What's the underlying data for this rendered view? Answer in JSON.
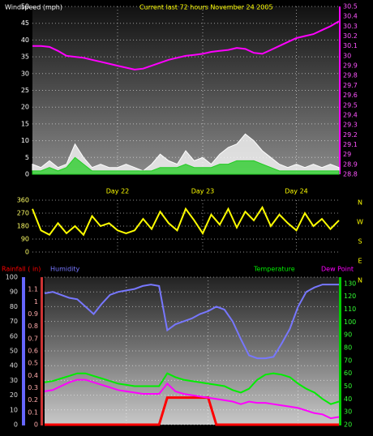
{
  "chart_data": [
    {
      "type": "line",
      "title": "Windspeed (mph)",
      "subtitle": "Current last 72 hours November 24 2005",
      "categories": [
        null,
        null,
        null,
        null,
        null,
        null,
        null,
        null,
        null,
        null,
        "Day 22",
        null,
        null,
        null,
        null,
        null,
        null,
        null,
        null,
        null,
        "Day 23",
        null,
        null,
        null,
        null,
        null,
        null,
        null,
        null,
        null,
        null,
        "Day 24",
        null,
        null,
        null,
        null,
        null
      ],
      "ylim": [
        0,
        50
      ],
      "yticks": [
        0,
        5,
        10,
        15,
        20,
        25,
        30,
        35,
        40,
        45,
        50
      ],
      "y2lim": [
        28.8,
        30.5
      ],
      "y2ticks": [
        28.8,
        28.9,
        29,
        29.1,
        29.2,
        29.3,
        29.4,
        29.5,
        29.6,
        29.7,
        29.8,
        29.9,
        30,
        30.1,
        30.2,
        30.3,
        30.4,
        30.5
      ],
      "grid": true,
      "series": [
        {
          "color": "#ffffff",
          "area": true,
          "values": [
            3,
            2,
            4,
            2,
            3,
            9,
            5,
            2,
            3,
            2,
            2,
            3,
            2,
            1,
            3,
            6,
            4,
            3,
            7,
            4,
            5,
            3,
            6,
            8,
            9,
            12,
            10,
            7,
            5,
            3,
            2,
            3,
            2,
            3,
            2,
            3,
            2
          ]
        },
        {
          "color": "#22cc22",
          "area": true,
          "values": [
            1,
            1,
            2,
            1,
            2,
            5,
            3,
            1,
            1,
            1,
            1,
            1,
            1,
            1,
            1,
            2,
            2,
            2,
            3,
            2,
            2,
            2,
            3,
            3,
            4,
            4,
            4,
            3,
            2,
            1,
            1,
            1,
            1,
            1,
            1,
            1,
            1
          ]
        },
        {
          "color": "#ff00ff",
          "axis": "y2",
          "values": [
            30.1,
            30.1,
            30.09,
            30.05,
            30,
            29.99,
            29.98,
            29.96,
            29.94,
            29.92,
            29.9,
            29.88,
            29.86,
            29.87,
            29.9,
            29.93,
            29.96,
            29.98,
            30,
            30.01,
            30.02,
            30.04,
            30.05,
            30.06,
            30.08,
            30.07,
            30.03,
            30.02,
            30.06,
            30.1,
            30.14,
            30.18,
            30.2,
            30.22,
            30.26,
            30.3,
            30.35
          ]
        }
      ]
    },
    {
      "type": "line",
      "ylim": [
        0,
        360
      ],
      "yticks": [
        0,
        90,
        180,
        270,
        360
      ],
      "compass": [
        "N",
        "W",
        "S",
        "E",
        "N"
      ],
      "grid": true,
      "series": [
        {
          "color": "#ffff00",
          "values": [
            300,
            150,
            120,
            200,
            130,
            180,
            120,
            250,
            180,
            200,
            150,
            130,
            150,
            230,
            160,
            280,
            200,
            150,
            300,
            220,
            130,
            260,
            190,
            300,
            170,
            280,
            220,
            310,
            180,
            260,
            200,
            150,
            270,
            180,
            230,
            160,
            220
          ]
        }
      ]
    },
    {
      "type": "line",
      "ylim": [
        0,
        100
      ],
      "yticks": [
        0,
        10,
        20,
        30,
        40,
        50,
        60,
        70,
        80,
        90,
        100
      ],
      "y2lim": [
        20,
        135
      ],
      "y2ticks": [
        20,
        30,
        40,
        50,
        60,
        70,
        80,
        90,
        100,
        110,
        120,
        130
      ],
      "y3lim": [
        0,
        1.2
      ],
      "y3ticks": [
        0,
        0.1,
        0.2,
        0.3,
        0.4,
        0.5,
        0.6,
        0.7,
        0.8,
        0.9,
        1,
        1.1
      ],
      "grid": true,
      "series": [
        {
          "name": "Rainfall ( in)",
          "color": "#ff0000",
          "axis": "y3",
          "values": [
            0,
            0,
            0,
            0,
            0,
            0,
            0,
            0,
            0,
            0,
            0,
            0,
            0,
            0,
            0,
            0.22,
            0.22,
            0.22,
            0.22,
            0.22,
            0.22,
            0,
            0,
            0,
            0,
            0,
            0,
            0,
            0,
            0,
            0,
            0,
            0,
            0,
            0,
            0,
            0
          ]
        },
        {
          "name": "Humidity",
          "color": "#7777ff",
          "values": [
            89,
            90,
            88,
            86,
            85,
            80,
            75,
            82,
            88,
            90,
            91,
            92,
            94,
            95,
            94,
            64,
            68,
            70,
            72,
            75,
            77,
            80,
            78,
            70,
            58,
            47,
            45,
            45,
            46,
            55,
            65,
            80,
            90,
            93,
            95,
            95,
            95
          ]
        },
        {
          "name": "Temperature",
          "color": "#00ee00",
          "axis": "y2",
          "values": [
            53,
            54,
            56,
            58,
            60,
            60,
            58,
            56,
            54,
            52,
            51,
            50,
            50,
            50,
            50,
            60,
            57,
            55,
            54,
            53,
            52,
            51,
            50,
            47,
            45,
            48,
            55,
            59,
            60,
            59,
            57,
            52,
            48,
            45,
            40,
            36,
            38
          ]
        },
        {
          "name": "Dew Point",
          "color": "#ff00ff",
          "axis": "y2",
          "values": [
            46,
            47,
            50,
            53,
            55,
            55,
            53,
            51,
            49,
            47,
            46,
            45,
            44,
            44,
            44,
            52,
            46,
            44,
            43,
            42,
            41,
            40,
            39,
            38,
            36,
            38,
            37,
            37,
            36,
            35,
            34,
            33,
            31,
            29,
            28,
            25,
            26
          ]
        }
      ]
    }
  ]
}
